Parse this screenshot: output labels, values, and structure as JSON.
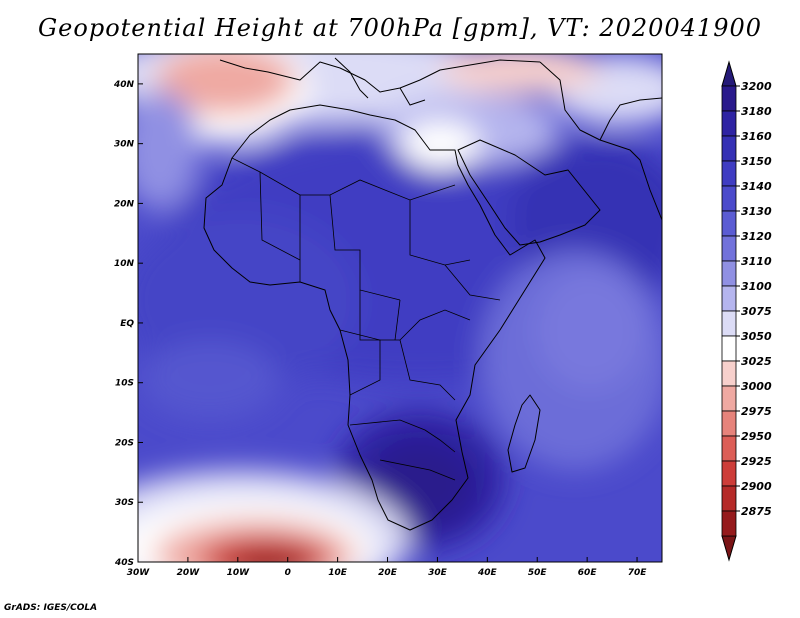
{
  "title": "Geopotential Height at 700hPa [gpm], VT: 2020041900",
  "credit": "GrADS: IGES/COLA",
  "map": {
    "extent": {
      "lon_min": -30,
      "lon_max": 75,
      "lat_min": -40,
      "lat_max": 45
    },
    "lon_ticks": [
      {
        "value": -30,
        "label": "30W"
      },
      {
        "value": -20,
        "label": "20W"
      },
      {
        "value": -10,
        "label": "10W"
      },
      {
        "value": 0,
        "label": "0"
      },
      {
        "value": 10,
        "label": "10E"
      },
      {
        "value": 20,
        "label": "20E"
      },
      {
        "value": 30,
        "label": "30E"
      },
      {
        "value": 40,
        "label": "40E"
      },
      {
        "value": 50,
        "label": "50E"
      },
      {
        "value": 60,
        "label": "60E"
      },
      {
        "value": 70,
        "label": "70E"
      }
    ],
    "lat_ticks": [
      {
        "value": 40,
        "label": "40N"
      },
      {
        "value": 30,
        "label": "30N"
      },
      {
        "value": 20,
        "label": "20N"
      },
      {
        "value": 10,
        "label": "10N"
      },
      {
        "value": 0,
        "label": "EQ"
      },
      {
        "value": -10,
        "label": "10S"
      },
      {
        "value": -20,
        "label": "20S"
      },
      {
        "value": -30,
        "label": "30S"
      },
      {
        "value": -40,
        "label": "40S"
      }
    ]
  },
  "colorbar": {
    "levels": [
      {
        "label": "3200",
        "color": "#2a1a8c"
      },
      {
        "label": "3180",
        "color": "#2e23a3"
      },
      {
        "label": "3160",
        "color": "#3530b4"
      },
      {
        "label": "3150",
        "color": "#3f3cc2"
      },
      {
        "label": "3140",
        "color": "#4b4acb"
      },
      {
        "label": "3130",
        "color": "#5b5cd3"
      },
      {
        "label": "3120",
        "color": "#7272db"
      },
      {
        "label": "3110",
        "color": "#9090e3"
      },
      {
        "label": "3100",
        "color": "#b5b5ee"
      },
      {
        "label": "3075",
        "color": "#dcdcf6"
      },
      {
        "label": "3050",
        "color": "#ffffff"
      },
      {
        "label": "3025",
        "color": "#f7d0cc"
      },
      {
        "label": "3000",
        "color": "#efa9a2"
      },
      {
        "label": "2975",
        "color": "#e6837b"
      },
      {
        "label": "2950",
        "color": "#dc5e57"
      },
      {
        "label": "2925",
        "color": "#cd3d39"
      },
      {
        "label": "2900",
        "color": "#b52a28"
      },
      {
        "label": "2875",
        "color": "#951a1c"
      }
    ],
    "top_cap_color": "#251a78",
    "bottom_cap_color": "#7a1416"
  }
}
